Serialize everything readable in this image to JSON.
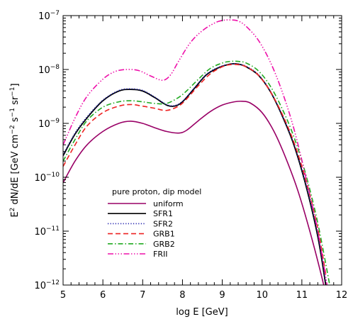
{
  "chart_data": {
    "type": "line",
    "xlabel": "log E [GeV]",
    "ylabel": {
      "base": "E",
      "sup1": "2",
      "mid": " dN/dE [GeV cm",
      "sup2": "−2",
      "mid2": " s",
      "sup3": "−1",
      "mid3": " sr",
      "sup4": "−1",
      "end": "]"
    },
    "xlim": [
      5,
      12
    ],
    "ylim_log10": [
      -12,
      -7
    ],
    "yscale": "log",
    "x_ticks": [
      5,
      6,
      7,
      8,
      9,
      10,
      11,
      12
    ],
    "x_tick_labels": [
      "5",
      "6",
      "7",
      "8",
      "9",
      "10",
      "11",
      "12"
    ],
    "y_ticks": [
      {
        "base": "10",
        "exp": "−12",
        "value": -12
      },
      {
        "base": "10",
        "exp": "−11",
        "value": -11
      },
      {
        "base": "10",
        "exp": "−10",
        "value": -10
      },
      {
        "base": "10",
        "exp": "−9",
        "value": -9
      },
      {
        "base": "10",
        "exp": "−8",
        "value": -8
      },
      {
        "base": "10",
        "exp": "−7",
        "value": -7
      }
    ],
    "legend_title": "pure proton, dip model",
    "legend_placement": "bottom-left",
    "series": [
      {
        "name": "uniform",
        "color": "#990066",
        "dash": "solid",
        "x": [
          5.0,
          5.3,
          5.6,
          6.0,
          6.4,
          6.7,
          7.0,
          7.3,
          7.6,
          7.9,
          8.1,
          8.4,
          8.7,
          9.0,
          9.3,
          9.5,
          9.7,
          10.0,
          10.3,
          10.6,
          10.9,
          11.2,
          11.5,
          11.7
        ],
        "y": [
          -10.1,
          -9.7,
          -9.4,
          -9.15,
          -9.0,
          -8.96,
          -9.0,
          -9.08,
          -9.15,
          -9.18,
          -9.13,
          -8.95,
          -8.78,
          -8.66,
          -8.6,
          -8.59,
          -8.62,
          -8.8,
          -9.15,
          -9.65,
          -10.25,
          -11.0,
          -11.85,
          -12.5
        ]
      },
      {
        "name": "SFR1",
        "color": "#000000",
        "dash": "solid",
        "x": [
          5.0,
          5.3,
          5.6,
          6.0,
          6.4,
          6.7,
          7.0,
          7.3,
          7.6,
          7.8,
          8.0,
          8.3,
          8.6,
          8.9,
          9.2,
          9.4,
          9.6,
          9.9,
          10.2,
          10.5,
          10.8,
          11.1,
          11.4,
          11.6
        ],
        "y": [
          -9.6,
          -9.2,
          -8.9,
          -8.58,
          -8.4,
          -8.37,
          -8.4,
          -8.52,
          -8.66,
          -8.68,
          -8.6,
          -8.35,
          -8.1,
          -7.97,
          -7.9,
          -7.9,
          -7.95,
          -8.1,
          -8.4,
          -8.85,
          -9.4,
          -10.15,
          -11.1,
          -12.0
        ]
      },
      {
        "name": "SFR2",
        "color": "#1a1aaa",
        "dash": "dotted",
        "x": [
          5.0,
          5.3,
          5.6,
          6.0,
          6.4,
          6.7,
          7.0,
          7.3,
          7.6,
          7.8,
          8.0,
          8.3,
          8.6,
          8.9,
          9.2,
          9.4,
          9.6,
          9.9,
          10.2,
          10.5,
          10.8,
          11.1,
          11.4,
          11.6
        ],
        "y": [
          -9.58,
          -9.18,
          -8.88,
          -8.57,
          -8.39,
          -8.36,
          -8.39,
          -8.51,
          -8.65,
          -8.67,
          -8.59,
          -8.34,
          -8.09,
          -7.96,
          -7.9,
          -7.9,
          -7.94,
          -8.09,
          -8.39,
          -8.84,
          -9.38,
          -10.12,
          -11.05,
          -11.95
        ]
      },
      {
        "name": "GRB1",
        "color": "#ee2222",
        "dash": "dashed",
        "x": [
          5.0,
          5.3,
          5.6,
          6.0,
          6.4,
          6.7,
          7.0,
          7.3,
          7.6,
          7.9,
          8.1,
          8.4,
          8.7,
          9.0,
          9.2,
          9.4,
          9.6,
          9.9,
          10.2,
          10.5,
          10.8,
          11.1,
          11.4,
          11.6
        ],
        "y": [
          -9.8,
          -9.4,
          -9.05,
          -8.8,
          -8.68,
          -8.65,
          -8.68,
          -8.72,
          -8.76,
          -8.68,
          -8.55,
          -8.3,
          -8.08,
          -7.95,
          -7.91,
          -7.91,
          -7.95,
          -8.1,
          -8.4,
          -8.82,
          -9.35,
          -10.05,
          -10.95,
          -11.8
        ]
      },
      {
        "name": "GRB2",
        "color": "#22aa22",
        "dash": "dashdot",
        "x": [
          5.0,
          5.3,
          5.6,
          6.0,
          6.4,
          6.7,
          7.0,
          7.3,
          7.6,
          7.9,
          8.1,
          8.4,
          8.7,
          9.0,
          9.2,
          9.4,
          9.6,
          9.9,
          10.2,
          10.5,
          10.8,
          11.1,
          11.4,
          11.7
        ],
        "y": [
          -9.7,
          -9.3,
          -8.95,
          -8.7,
          -8.6,
          -8.58,
          -8.6,
          -8.63,
          -8.63,
          -8.52,
          -8.4,
          -8.18,
          -7.98,
          -7.88,
          -7.85,
          -7.85,
          -7.88,
          -8.02,
          -8.3,
          -8.72,
          -9.25,
          -9.95,
          -10.85,
          -12.0
        ]
      },
      {
        "name": "FRII",
        "color": "#ee11aa",
        "dash": "dashdotdotdot",
        "x": [
          5.0,
          5.3,
          5.6,
          6.0,
          6.3,
          6.6,
          6.9,
          7.2,
          7.5,
          7.7,
          7.9,
          8.2,
          8.5,
          8.8,
          9.0,
          9.2,
          9.4,
          9.6,
          9.9,
          10.2,
          10.5,
          10.8,
          11.1,
          11.4,
          11.7
        ],
        "y": [
          -9.4,
          -8.9,
          -8.5,
          -8.18,
          -8.04,
          -8.0,
          -8.02,
          -8.12,
          -8.2,
          -8.1,
          -7.85,
          -7.5,
          -7.28,
          -7.14,
          -7.09,
          -7.08,
          -7.1,
          -7.2,
          -7.45,
          -7.85,
          -8.4,
          -9.1,
          -10.0,
          -11.0,
          -12.3
        ]
      }
    ]
  }
}
